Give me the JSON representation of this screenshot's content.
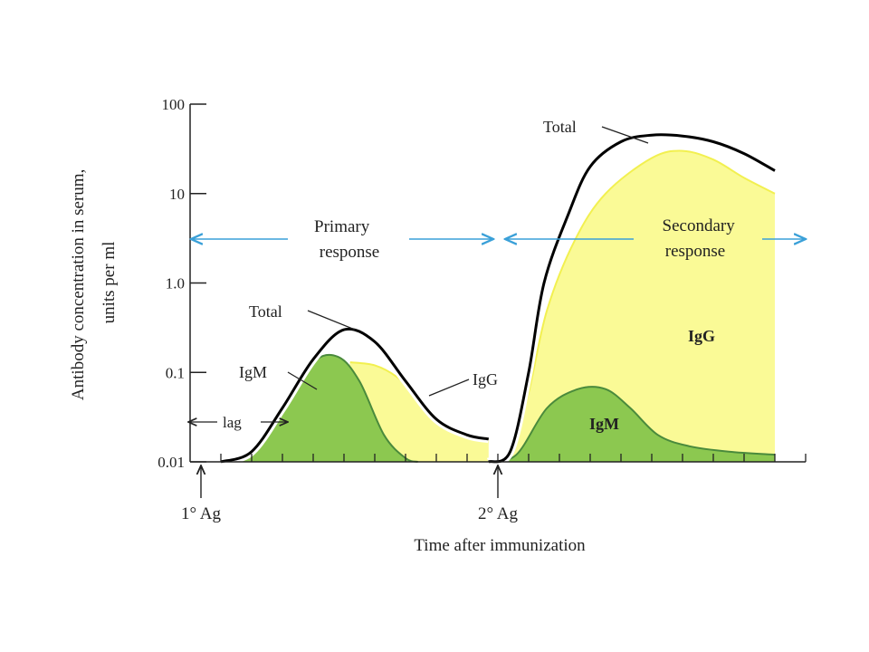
{
  "chart_data": {
    "type": "area",
    "title": "",
    "xlabel": "Time after immunization",
    "ylabel": "Antibody concentration in serum, units per ml",
    "ylabel_lines": [
      "Antibody concentration in serum,",
      "units per ml"
    ],
    "yscale": "log",
    "ylim": [
      0.01,
      100
    ],
    "y_ticks": [
      "100",
      "10",
      "1.0",
      "0.1",
      "0.01"
    ],
    "y_tick_values": [
      100,
      10,
      1,
      0.1,
      0.01
    ],
    "xlim": [
      0,
      20
    ],
    "x_tick_count": 20,
    "series": [
      {
        "name": "Total",
        "response": "primary",
        "color": "#000000",
        "x": [
          1,
          2,
          3,
          4,
          5,
          6,
          7,
          8,
          9,
          9.7
        ],
        "values": [
          0.01,
          0.013,
          0.04,
          0.14,
          0.3,
          0.22,
          0.08,
          0.03,
          0.02,
          0.018
        ]
      },
      {
        "name": "IgM",
        "response": "primary",
        "color": "#8cc850",
        "x": [
          1,
          2,
          3,
          4,
          4.8,
          5.5,
          6.3,
          7,
          7.4
        ],
        "values": [
          0.01,
          0.012,
          0.04,
          0.13,
          0.15,
          0.08,
          0.02,
          0.011,
          0.01
        ]
      },
      {
        "name": "IgG",
        "response": "primary",
        "color": "#fafa96",
        "x": [
          5.2,
          6,
          6.7,
          7.5,
          8.3,
          9,
          9.7
        ],
        "values": [
          0.13,
          0.12,
          0.09,
          0.05,
          0.025,
          0.02,
          0.018
        ]
      },
      {
        "name": "Total",
        "response": "secondary",
        "color": "#000000",
        "x": [
          9.7,
          10.4,
          11,
          11.5,
          12.3,
          13,
          14,
          15,
          16,
          17,
          18,
          19
        ],
        "values": [
          0.01,
          0.013,
          0.1,
          1.0,
          6,
          20,
          38,
          45,
          44,
          38,
          28,
          18
        ]
      },
      {
        "name": "IgG",
        "response": "secondary",
        "color": "#fafa96",
        "x": [
          9.7,
          10.4,
          11,
          11.6,
          12.5,
          13.5,
          15,
          16,
          17,
          18,
          19
        ],
        "values": [
          0.01,
          0.012,
          0.06,
          0.5,
          3,
          10,
          25,
          30,
          24,
          15,
          10
        ]
      },
      {
        "name": "IgM",
        "response": "secondary",
        "color": "#8cc850",
        "x": [
          9.7,
          10.6,
          11.6,
          12.6,
          13.5,
          14.3,
          15.2,
          16.2,
          17.5,
          19
        ],
        "values": [
          0.01,
          0.012,
          0.04,
          0.065,
          0.065,
          0.04,
          0.02,
          0.015,
          0.013,
          0.012
        ]
      }
    ],
    "annotations": {
      "primary_response": [
        "Primary",
        "response"
      ],
      "secondary_response": [
        "Secondary",
        "response"
      ],
      "lag": "lag",
      "total_primary": "Total",
      "igm_primary": "IgM",
      "igg_primary": "IgG",
      "total_secondary": "Total",
      "igg_secondary": "IgG",
      "igm_secondary": "IgM",
      "primary_antigen": "1° Ag",
      "secondary_antigen": "2° Ag"
    },
    "colors": {
      "igg_fill": "#fafa96",
      "igg_line": "#f2f050",
      "igm_fill": "#8cc850",
      "igm_line": "#4a8a3c",
      "total_line": "#000000",
      "arrow": "#3aa0d8",
      "axis": "#222222"
    }
  }
}
